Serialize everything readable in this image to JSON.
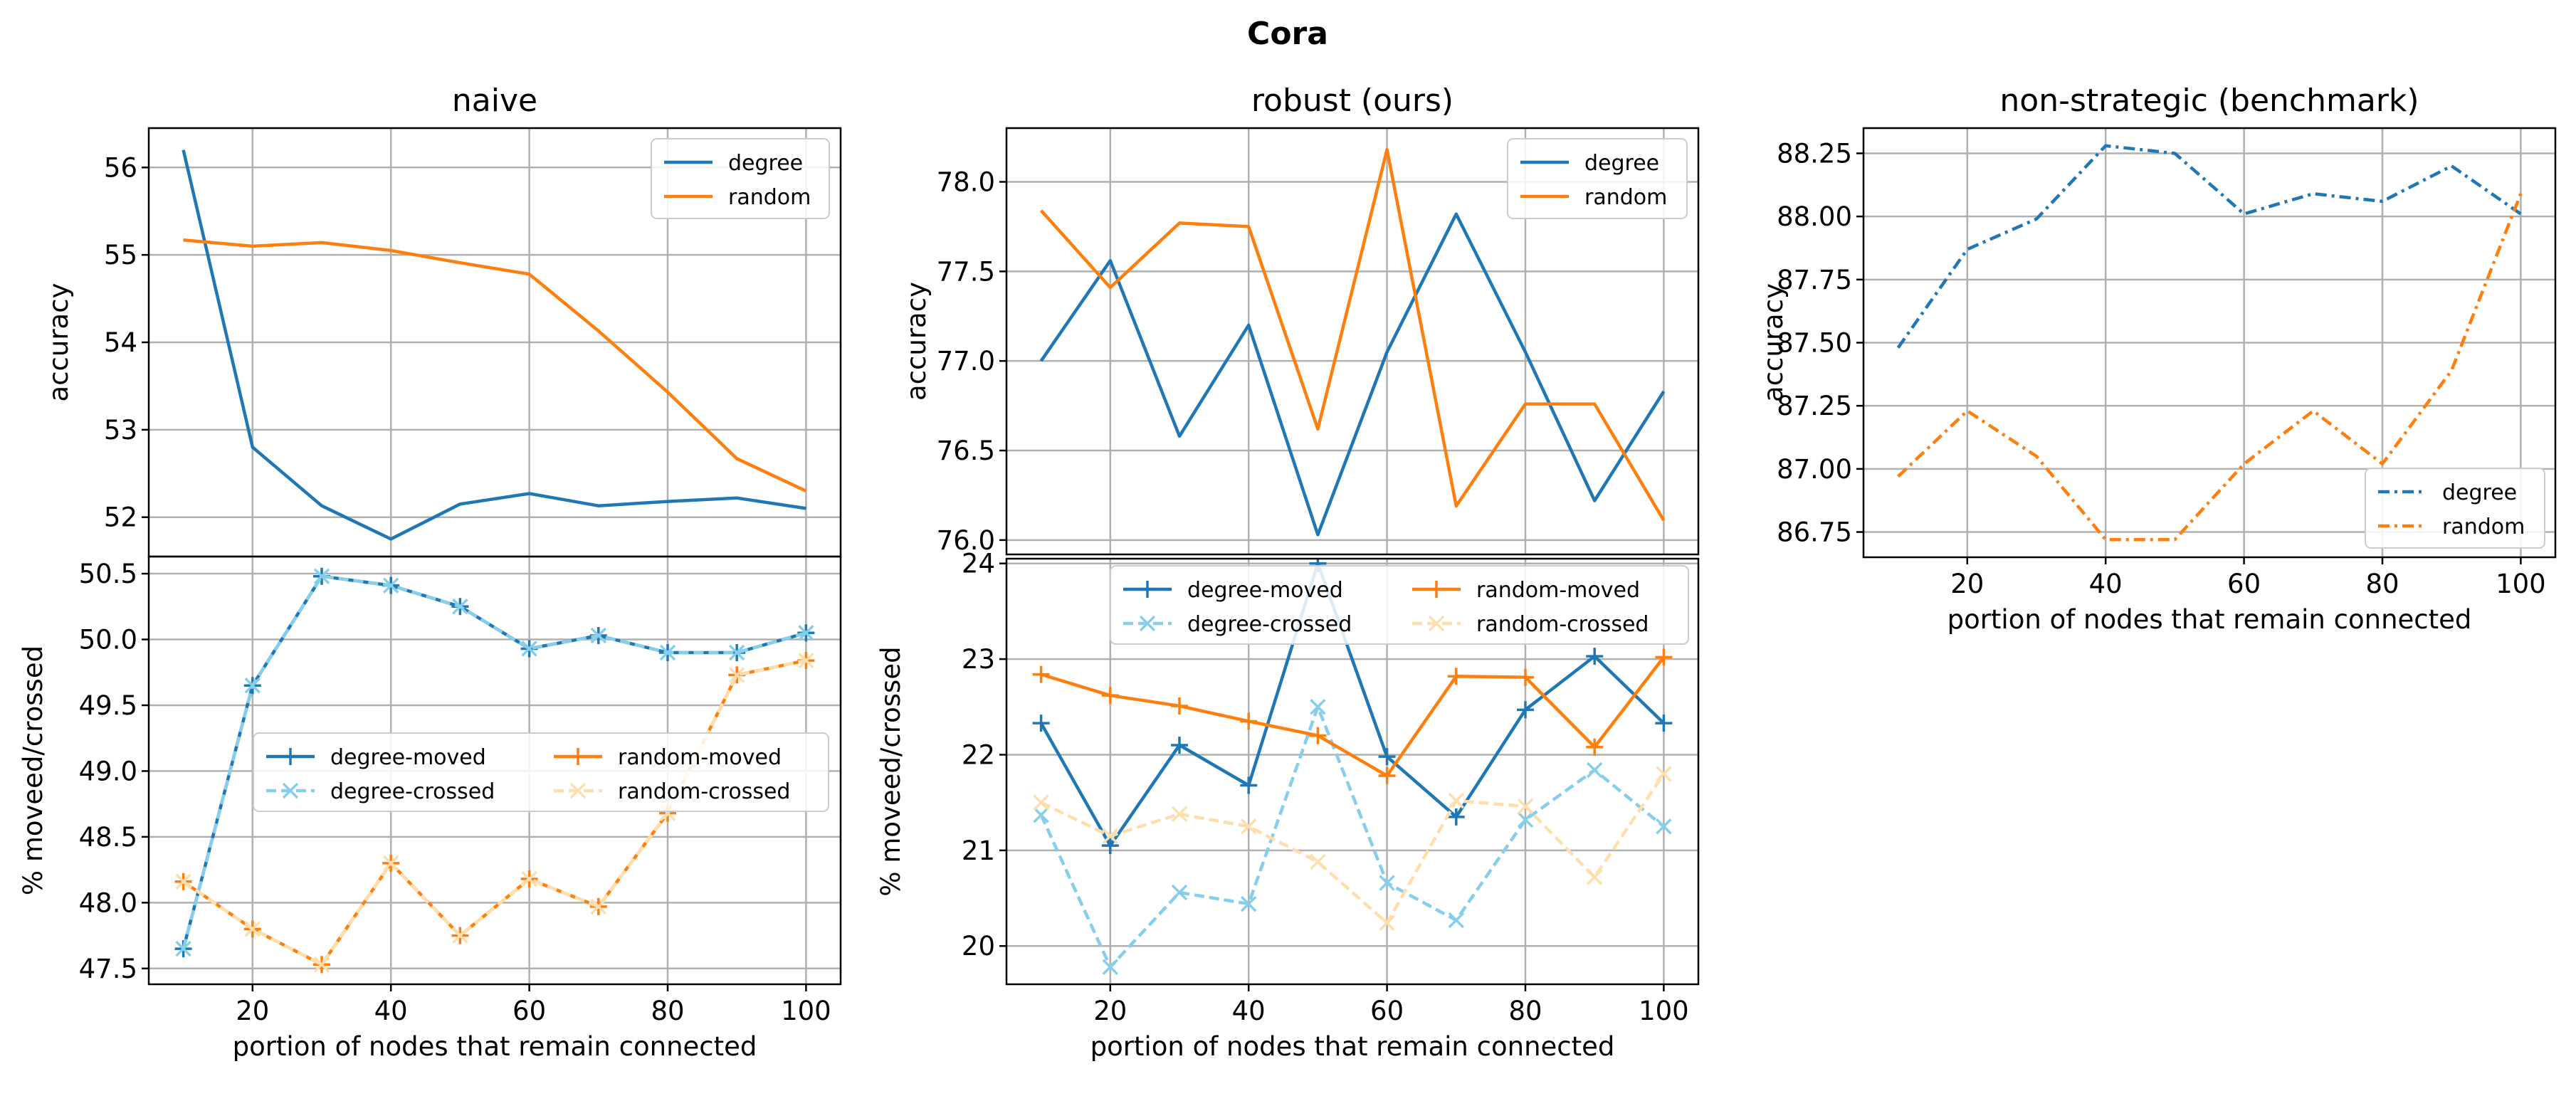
{
  "figure": {
    "suptitle": "Cora"
  },
  "colors": {
    "degree": "#1f77b4",
    "random": "#ff7f0e",
    "degree_crossed": "#87ceeb",
    "random_crossed": "#ffdead",
    "grid": "#b0b0b0",
    "axes": "#000000"
  },
  "chart_data": [
    {
      "id": "naive-top",
      "type": "line",
      "title": "naive",
      "xlabel": "",
      "ylabel": "accuracy",
      "xlim": [
        5,
        105
      ],
      "ylim": [
        51.55,
        56.45
      ],
      "xticks": [],
      "yticks": [
        52,
        53,
        54,
        55,
        56
      ],
      "ytick_labels": [
        "52",
        "53",
        "54",
        "55",
        "56"
      ],
      "legend": {
        "loc": "upper right",
        "ncol": 1
      },
      "series": [
        {
          "name": "degree",
          "color": "#1f77b4",
          "dash": "solid",
          "marker": "none",
          "x": [
            10,
            20,
            30,
            40,
            50,
            60,
            70,
            80,
            90,
            100
          ],
          "y": [
            56.2,
            52.8,
            52.13,
            51.75,
            52.15,
            52.27,
            52.13,
            52.18,
            52.22,
            52.1
          ]
        },
        {
          "name": "random",
          "color": "#ff7f0e",
          "dash": "solid",
          "marker": "none",
          "x": [
            10,
            20,
            30,
            40,
            50,
            60,
            70,
            80,
            90,
            100
          ],
          "y": [
            55.17,
            55.1,
            55.14,
            55.05,
            54.91,
            54.78,
            54.13,
            53.43,
            52.67,
            52.3
          ]
        }
      ]
    },
    {
      "id": "naive-bottom",
      "type": "line",
      "title": "",
      "xlabel": "portion of nodes that remain connected",
      "ylabel": "% moveed/crossed",
      "xlim": [
        5,
        105
      ],
      "ylim": [
        47.38,
        50.63
      ],
      "xticks": [
        20,
        40,
        60,
        80,
        100
      ],
      "xtick_labels": [
        "20",
        "40",
        "60",
        "80",
        "100"
      ],
      "yticks": [
        47.5,
        48.0,
        48.5,
        49.0,
        49.5,
        50.0,
        50.5
      ],
      "ytick_labels": [
        "47.5",
        "48.0",
        "48.5",
        "49.0",
        "49.5",
        "50.0",
        "50.5"
      ],
      "legend": {
        "loc": "center right",
        "ncol": 2
      },
      "series": [
        {
          "name": "degree-moved",
          "color": "#1f77b4",
          "dash": "solid",
          "marker": "plus",
          "x": [
            10,
            20,
            30,
            40,
            50,
            60,
            70,
            80,
            90,
            100
          ],
          "y": [
            47.65,
            49.65,
            50.48,
            50.41,
            50.25,
            49.93,
            50.03,
            49.9,
            49.9,
            50.05
          ]
        },
        {
          "name": "degree-crossed",
          "color": "#87ceeb",
          "dash": "dashed",
          "marker": "x",
          "x": [
            10,
            20,
            30,
            40,
            50,
            60,
            70,
            80,
            90,
            100
          ],
          "y": [
            47.65,
            49.65,
            50.48,
            50.41,
            50.25,
            49.93,
            50.03,
            49.9,
            49.9,
            50.05
          ]
        },
        {
          "name": "random-moved",
          "color": "#ff7f0e",
          "dash": "solid",
          "marker": "plus",
          "x": [
            10,
            20,
            30,
            40,
            50,
            60,
            70,
            80,
            90,
            100
          ],
          "y": [
            48.16,
            47.8,
            47.53,
            48.3,
            47.75,
            48.18,
            47.97,
            48.68,
            49.73,
            49.84
          ]
        },
        {
          "name": "random-crossed",
          "color": "#ffdead",
          "dash": "dashed",
          "marker": "x",
          "x": [
            10,
            20,
            30,
            40,
            50,
            60,
            70,
            80,
            90,
            100
          ],
          "y": [
            48.16,
            47.8,
            47.53,
            48.3,
            47.75,
            48.18,
            47.97,
            48.68,
            49.73,
            49.84
          ]
        }
      ]
    },
    {
      "id": "robust-top",
      "type": "line",
      "title": "robust (ours)",
      "xlabel": "",
      "ylabel": "accuracy",
      "xlim": [
        5,
        105
      ],
      "ylim": [
        75.92,
        78.3
      ],
      "xticks": [],
      "yticks": [
        76.0,
        76.5,
        77.0,
        77.5,
        78.0
      ],
      "ytick_labels": [
        "76.0",
        "76.5",
        "77.0",
        "77.5",
        "78.0"
      ],
      "legend": {
        "loc": "upper right",
        "ncol": 1
      },
      "series": [
        {
          "name": "degree",
          "color": "#1f77b4",
          "dash": "solid",
          "marker": "none",
          "x": [
            10,
            20,
            30,
            40,
            50,
            60,
            70,
            80,
            90,
            100
          ],
          "y": [
            77.0,
            77.56,
            76.58,
            77.2,
            76.03,
            77.05,
            77.82,
            77.05,
            76.22,
            76.83
          ]
        },
        {
          "name": "random",
          "color": "#ff7f0e",
          "dash": "solid",
          "marker": "none",
          "x": [
            10,
            20,
            30,
            40,
            50,
            60,
            70,
            80,
            90,
            100
          ],
          "y": [
            77.84,
            77.41,
            77.77,
            77.75,
            76.62,
            78.18,
            76.19,
            76.76,
            76.76,
            76.11
          ]
        }
      ]
    },
    {
      "id": "robust-bottom",
      "type": "line",
      "title": "",
      "xlabel": "portion of nodes that remain connected",
      "ylabel": "% moveed/crossed",
      "xlim": [
        5,
        105
      ],
      "ylim": [
        19.6,
        24.05
      ],
      "xticks": [
        20,
        40,
        60,
        80,
        100
      ],
      "xtick_labels": [
        "20",
        "40",
        "60",
        "80",
        "100"
      ],
      "yticks": [
        20,
        21,
        22,
        23,
        24
      ],
      "ytick_labels": [
        "20",
        "21",
        "22",
        "23",
        "24"
      ],
      "legend": {
        "loc": "upper right",
        "ncol": 2
      },
      "series": [
        {
          "name": "degree-moved",
          "color": "#1f77b4",
          "dash": "solid",
          "marker": "plus",
          "x": [
            10,
            20,
            30,
            40,
            50,
            60,
            70,
            80,
            90,
            100
          ],
          "y": [
            22.33,
            21.05,
            22.1,
            21.68,
            24.0,
            21.98,
            21.35,
            22.47,
            23.03,
            22.33
          ]
        },
        {
          "name": "degree-crossed",
          "color": "#87ceeb",
          "dash": "dashed",
          "marker": "x",
          "x": [
            10,
            20,
            30,
            40,
            50,
            60,
            70,
            80,
            90,
            100
          ],
          "y": [
            21.37,
            19.78,
            20.56,
            20.44,
            22.5,
            20.66,
            20.27,
            21.32,
            21.84,
            21.25
          ]
        },
        {
          "name": "random-moved",
          "color": "#ff7f0e",
          "dash": "solid",
          "marker": "plus",
          "x": [
            10,
            20,
            30,
            40,
            50,
            60,
            70,
            80,
            90,
            100
          ],
          "y": [
            22.84,
            22.62,
            22.51,
            22.35,
            22.2,
            21.78,
            22.82,
            22.81,
            22.08,
            23.02
          ]
        },
        {
          "name": "random-crossed",
          "color": "#ffdead",
          "dash": "dashed",
          "marker": "x",
          "x": [
            10,
            20,
            30,
            40,
            50,
            60,
            70,
            80,
            90,
            100
          ],
          "y": [
            21.5,
            21.15,
            21.38,
            21.25,
            20.88,
            20.24,
            21.52,
            21.46,
            20.72,
            21.8
          ]
        }
      ]
    },
    {
      "id": "nonstrategic",
      "type": "line",
      "title": "non-strategic (benchmark)",
      "xlabel": "portion of nodes that remain connected",
      "ylabel": "accuracy",
      "xlim": [
        5,
        105
      ],
      "ylim": [
        86.65,
        88.35
      ],
      "xticks": [
        20,
        40,
        60,
        80,
        100
      ],
      "xtick_labels": [
        "20",
        "40",
        "60",
        "80",
        "100"
      ],
      "yticks": [
        86.75,
        87.0,
        87.25,
        87.5,
        87.75,
        88.0,
        88.25
      ],
      "ytick_labels": [
        "86.75",
        "87.00",
        "87.25",
        "87.50",
        "87.75",
        "88.00",
        "88.25"
      ],
      "legend": {
        "loc": "lower right",
        "ncol": 1
      },
      "series": [
        {
          "name": "degree",
          "color": "#1f77b4",
          "dash": "dashdot",
          "marker": "none",
          "x": [
            10,
            20,
            30,
            40,
            50,
            60,
            70,
            80,
            90,
            100
          ],
          "y": [
            87.48,
            87.87,
            87.99,
            88.28,
            88.25,
            88.01,
            88.09,
            88.06,
            88.2,
            88.01
          ]
        },
        {
          "name": "random",
          "color": "#ff7f0e",
          "dash": "dashdot",
          "marker": "none",
          "x": [
            10,
            20,
            30,
            40,
            50,
            60,
            70,
            80,
            90,
            100
          ],
          "y": [
            86.97,
            87.23,
            87.05,
            86.72,
            86.72,
            87.02,
            87.23,
            87.02,
            87.39,
            88.09
          ]
        }
      ]
    }
  ]
}
